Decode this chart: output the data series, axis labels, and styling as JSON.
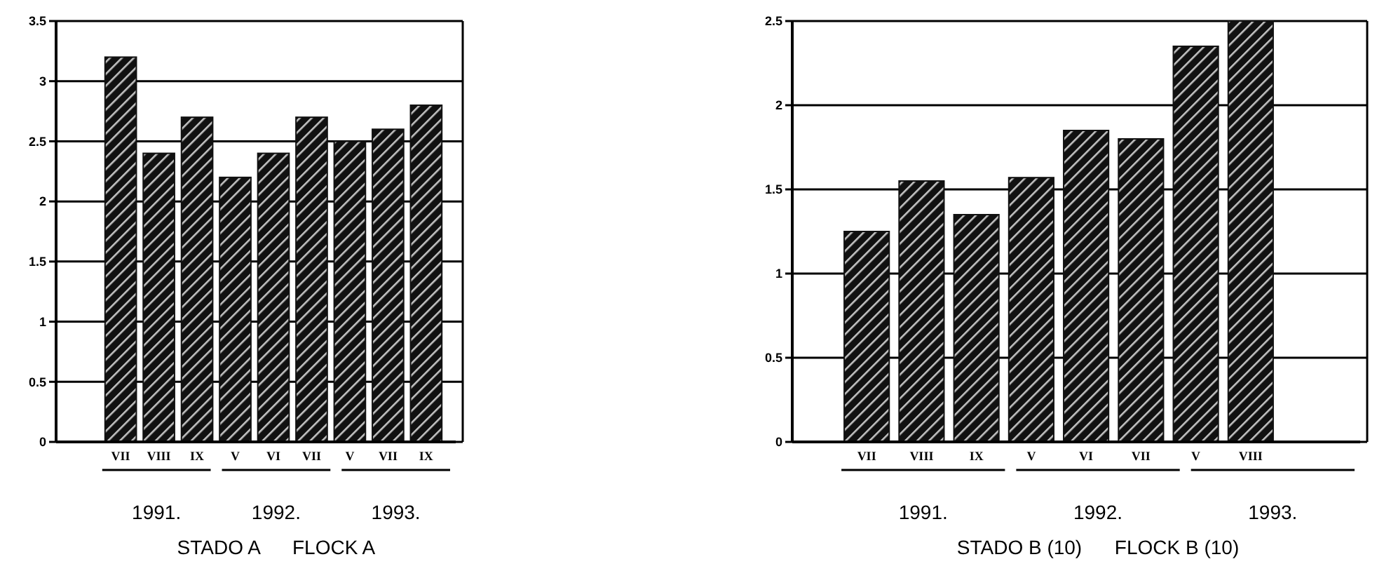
{
  "chart_data": [
    {
      "type": "bar",
      "categories": [
        "VII",
        "VIII",
        "IX",
        "V",
        "VI",
        "VII",
        "V",
        "VII",
        "IX"
      ],
      "values": [
        3.2,
        2.4,
        2.7,
        2.2,
        2.4,
        2.7,
        2.5,
        2.6,
        2.8
      ],
      "color": "#111111",
      "ylim": [
        0,
        3.5
      ],
      "yticks": [
        0,
        0.5,
        1,
        1.5,
        2,
        2.5,
        3,
        3.5
      ],
      "grid": "y",
      "xlabel": "STADO A      FLOCK A",
      "annotations": [
        "1991.",
        "1992.",
        "1993."
      ]
    },
    {
      "type": "bar",
      "categories": [
        "VII",
        "VIII",
        "IX",
        "V",
        "VI",
        "VII",
        "V",
        "VIII"
      ],
      "values": [
        1.25,
        1.55,
        1.35,
        1.57,
        1.85,
        1.8,
        2.35,
        2.5
      ],
      "color": "#111111",
      "ylim": [
        0,
        2.5
      ],
      "yticks": [
        0,
        0.5,
        1,
        1.5,
        2,
        2.5
      ],
      "grid": "y",
      "xlabel": "STADO B (10)      FLOCK B (10)",
      "annotations": [
        "1991.",
        "1992.",
        "1993."
      ]
    }
  ]
}
